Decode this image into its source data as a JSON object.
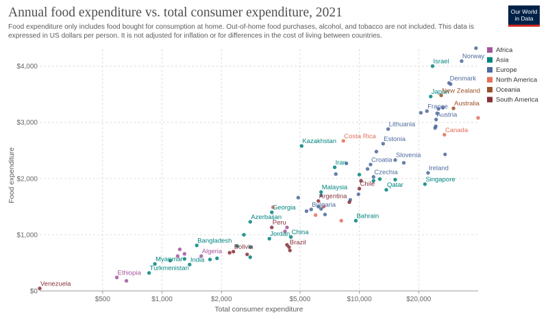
{
  "header": {
    "title": "Annual food expenditure vs. total consumer expenditure, 2021",
    "subtitle": "Food expenditure only includes food bought for consumption at home. Out-of-home food purchases, alcohol, and tobacco are not included. This data is expressed in US dollars per person. It is not adjusted for inflation or for differences in the cost of living between countries.",
    "logo_line1": "Our World",
    "logo_line2": "in Data"
  },
  "chart_data": {
    "type": "scatter",
    "title": "Annual food expenditure vs. total consumer expenditure, 2021",
    "xlabel": "Total consumer expenditure",
    "ylabel": "Food expenditure",
    "x_scale": "log",
    "xlim": [
      240,
      40000
    ],
    "ylim": [
      0,
      4300
    ],
    "x_ticks": [
      {
        "value": 500,
        "label": "$500"
      },
      {
        "value": 1000,
        "label": "$1,000"
      },
      {
        "value": 2000,
        "label": "$2,000"
      },
      {
        "value": 5000,
        "label": "$5,000"
      },
      {
        "value": 10000,
        "label": "$10,000"
      },
      {
        "value": 20000,
        "label": "$20,000"
      }
    ],
    "y_ticks": [
      {
        "value": 0,
        "label": "$0"
      },
      {
        "value": 1000,
        "label": "$1,000"
      },
      {
        "value": 2000,
        "label": "$2,000"
      },
      {
        "value": 3000,
        "label": "$3,000"
      },
      {
        "value": 4000,
        "label": "$4,000"
      }
    ],
    "grid": true,
    "legend_position": "right",
    "series": [
      {
        "name": "Africa",
        "color": "#a2559c",
        "points": [
          {
            "x": 590,
            "y": 240,
            "label": "Ethiopia"
          },
          {
            "x": 1580,
            "y": 620,
            "label": "Algeria"
          },
          {
            "x": 660,
            "y": 180
          },
          {
            "x": 1200,
            "y": 620
          },
          {
            "x": 1230,
            "y": 740
          },
          {
            "x": 1300,
            "y": 660
          },
          {
            "x": 4200,
            "y": 1060
          },
          {
            "x": 4300,
            "y": 1130
          }
        ]
      },
      {
        "name": "Asia",
        "color": "#00847e",
        "points": [
          {
            "x": 23500,
            "y": 4000,
            "label": "Israel"
          },
          {
            "x": 23000,
            "y": 3460,
            "label": "Japan"
          },
          {
            "x": 5100,
            "y": 2580,
            "label": "Kazakhstan"
          },
          {
            "x": 7500,
            "y": 2200,
            "label": "Iran"
          },
          {
            "x": 6400,
            "y": 1760,
            "label": "Malaysia"
          },
          {
            "x": 13700,
            "y": 1800,
            "label": "Qatar"
          },
          {
            "x": 21500,
            "y": 1900,
            "label": "Singapore"
          },
          {
            "x": 3600,
            "y": 1400,
            "label": "Georgia"
          },
          {
            "x": 2800,
            "y": 1230,
            "label": "Azerbaijan"
          },
          {
            "x": 9600,
            "y": 1250,
            "label": "Bahrain"
          },
          {
            "x": 1500,
            "y": 810,
            "label": "Bangladesh"
          },
          {
            "x": 3500,
            "y": 930,
            "label": "Jordan"
          },
          {
            "x": 4500,
            "y": 960,
            "label": "China"
          },
          {
            "x": 920,
            "y": 480,
            "label": "Myanmar"
          },
          {
            "x": 1380,
            "y": 470,
            "label": "India"
          },
          {
            "x": 860,
            "y": 320,
            "label": "Turkmenistan"
          },
          {
            "x": 10000,
            "y": 2070
          },
          {
            "x": 11800,
            "y": 1960
          },
          {
            "x": 12700,
            "y": 1990
          },
          {
            "x": 15200,
            "y": 1980
          },
          {
            "x": 2600,
            "y": 1000
          },
          {
            "x": 2400,
            "y": 800
          },
          {
            "x": 2800,
            "y": 780
          },
          {
            "x": 1750,
            "y": 560
          },
          {
            "x": 1900,
            "y": 580
          },
          {
            "x": 2800,
            "y": 600
          },
          {
            "x": 1100,
            "y": 540
          },
          {
            "x": 1300,
            "y": 570
          }
        ]
      },
      {
        "name": "Europe",
        "color": "#4c6a9c",
        "points": [
          {
            "x": 33000,
            "y": 4090,
            "label": "Norway"
          },
          {
            "x": 28500,
            "y": 3700,
            "label": "Denmark"
          },
          {
            "x": 22000,
            "y": 3200,
            "label": "France"
          },
          {
            "x": 24500,
            "y": 3050,
            "label": "Austria"
          },
          {
            "x": 14000,
            "y": 2880,
            "label": "Lithuania"
          },
          {
            "x": 13200,
            "y": 2620,
            "label": "Estonia"
          },
          {
            "x": 15200,
            "y": 2330,
            "label": "Slovenia"
          },
          {
            "x": 11400,
            "y": 2250,
            "label": "Croatia"
          },
          {
            "x": 22300,
            "y": 2100,
            "label": "Ireland"
          },
          {
            "x": 11800,
            "y": 2030,
            "label": "Czechia"
          },
          {
            "x": 5700,
            "y": 1450,
            "label": "Bulgaria"
          },
          {
            "x": 39000,
            "y": 4320
          },
          {
            "x": 29000,
            "y": 3680
          },
          {
            "x": 25200,
            "y": 3240
          },
          {
            "x": 26500,
            "y": 3260
          },
          {
            "x": 24800,
            "y": 3160
          },
          {
            "x": 24200,
            "y": 2900
          },
          {
            "x": 24400,
            "y": 2930
          },
          {
            "x": 27200,
            "y": 2430
          },
          {
            "x": 16800,
            "y": 2280
          },
          {
            "x": 12200,
            "y": 2480
          },
          {
            "x": 11000,
            "y": 2170
          },
          {
            "x": 8600,
            "y": 2270
          },
          {
            "x": 7600,
            "y": 2080
          },
          {
            "x": 9900,
            "y": 1720
          },
          {
            "x": 6400,
            "y": 1700
          },
          {
            "x": 4900,
            "y": 1660
          },
          {
            "x": 6200,
            "y": 1500
          },
          {
            "x": 6400,
            "y": 1460
          },
          {
            "x": 5400,
            "y": 1420
          },
          {
            "x": 9000,
            "y": 1620
          },
          {
            "x": 6700,
            "y": 1360
          },
          {
            "x": 20500,
            "y": 3170
          }
        ]
      },
      {
        "name": "North America",
        "color": "#e56e5a",
        "points": [
          {
            "x": 8300,
            "y": 2670,
            "label": "Costa Rica"
          },
          {
            "x": 27000,
            "y": 2780,
            "label": "Canada"
          },
          {
            "x": 40000,
            "y": 3080
          },
          {
            "x": 3650,
            "y": 1490
          },
          {
            "x": 6600,
            "y": 1500
          },
          {
            "x": 8100,
            "y": 1250
          },
          {
            "x": 6000,
            "y": 1350
          }
        ]
      },
      {
        "name": "Oceania",
        "color": "#9a5129",
        "points": [
          {
            "x": 26000,
            "y": 3480,
            "label": "New Zealand"
          },
          {
            "x": 30000,
            "y": 3250,
            "label": "Australia"
          }
        ]
      },
      {
        "name": "South America",
        "color": "#883039",
        "points": [
          {
            "x": 10000,
            "y": 1820,
            "label": "Chile"
          },
          {
            "x": 6200,
            "y": 1600,
            "label": "Argentina"
          },
          {
            "x": 3600,
            "y": 1130,
            "label": "Peru"
          },
          {
            "x": 2300,
            "y": 700,
            "label": "Bolivia"
          },
          {
            "x": 4400,
            "y": 780,
            "label": "Brazil"
          },
          {
            "x": 240,
            "y": 45,
            "label": "Venezuela"
          },
          {
            "x": 10200,
            "y": 1960
          },
          {
            "x": 8900,
            "y": 1580
          },
          {
            "x": 4300,
            "y": 820
          },
          {
            "x": 2200,
            "y": 680
          },
          {
            "x": 2700,
            "y": 650
          },
          {
            "x": 4450,
            "y": 720
          }
        ]
      }
    ]
  }
}
